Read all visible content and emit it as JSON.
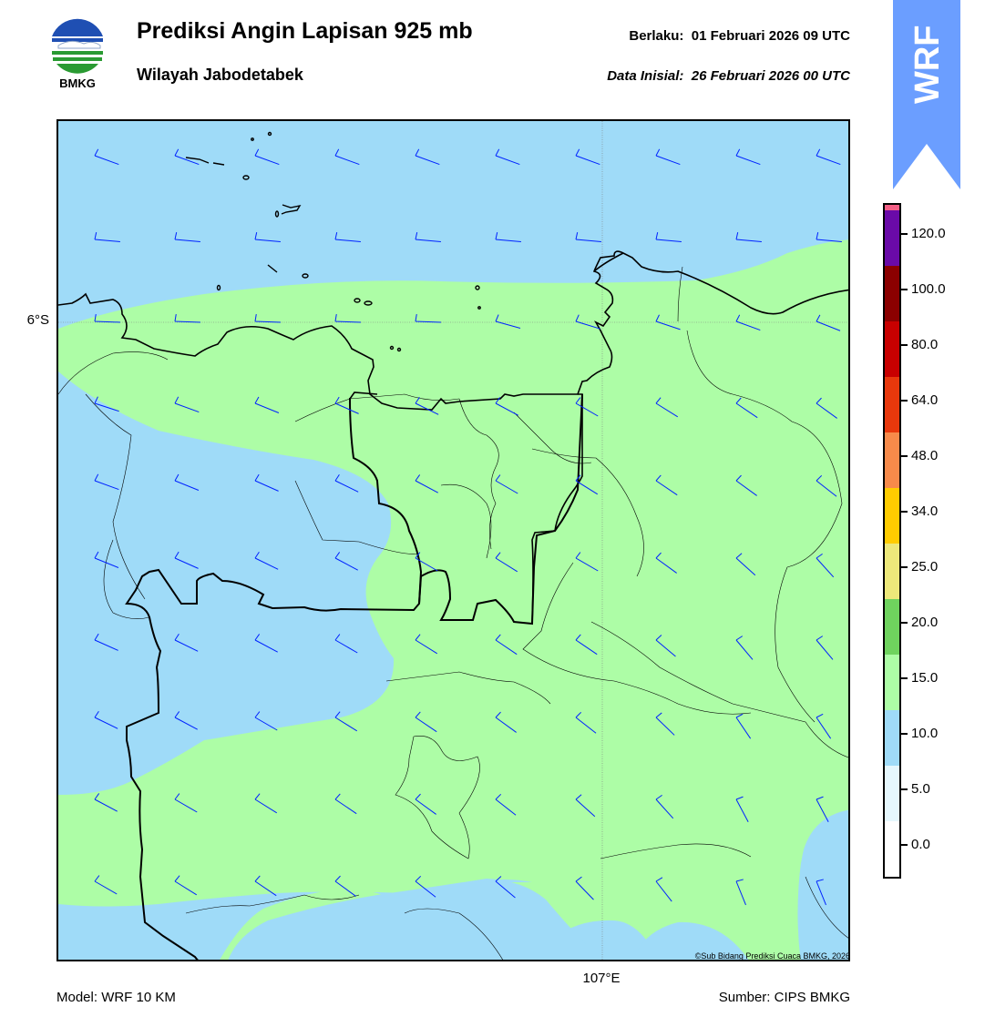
{
  "header": {
    "logo_text": "BMKG",
    "title": "Prediksi Angin Lapisan 925 mb",
    "subtitle": "Wilayah Jabodetabek",
    "valid_label": "Berlaku:",
    "valid_value": "01 Februari 2026 09 UTC",
    "init_label": "Data Inisial:",
    "init_value": "26 Februari 2026 00 UTC",
    "badge": "WRF"
  },
  "map": {
    "lat_label": "6°S",
    "lon_label": "107°E",
    "copyright": "©Sub Bidang Prediksi Cuaca BMKG, 2026",
    "ocean_color": "#9fdbf8",
    "wind_10_15_color": "#adfda6",
    "barb_color": "#0022ff",
    "coast_color": "#000000"
  },
  "footer": {
    "model": "Model: WRF 10 KM",
    "source": "Sumber: CIPS BMKG"
  },
  "colorbar": {
    "labels": [
      "0.0",
      "5.0",
      "10.0",
      "15.0",
      "20.0",
      "25.0",
      "34.0",
      "48.0",
      "64.0",
      "80.0",
      "100.0",
      "120.0"
    ],
    "colors": [
      "#ffffff",
      "#e5f7fd",
      "#9fdbf8",
      "#adfda6",
      "#6fd35e",
      "#ede87a",
      "#ffcc00",
      "#f78a4a",
      "#e8380c",
      "#c80000",
      "#8b0000",
      "#6a0aa8",
      "#f45f86"
    ]
  }
}
